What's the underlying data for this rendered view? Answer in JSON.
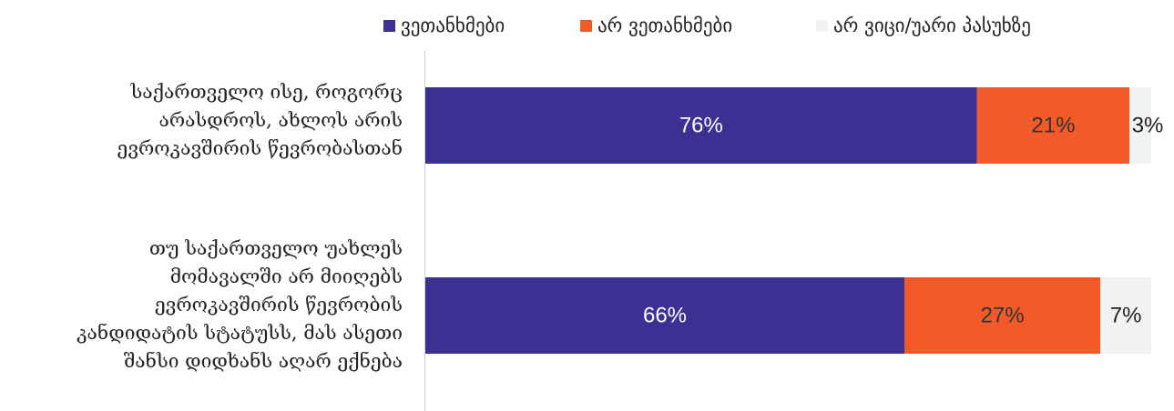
{
  "chart_data": {
    "type": "bar",
    "orientation": "horizontal",
    "stacked": true,
    "categories": [
      "საქართველო ისე, როგორც არასდროს, ახლოს არის ევროკავშირის წევრობასთან",
      "თუ საქართველო უახლეს მომავალში არ მიიღებს ევროკავშირის წევრობის კანდიდატის სტატუსს, მას ასეთი შანსი დიდხანს აღარ ექნება"
    ],
    "category_lines": [
      [
        "საქართველო ისე, როგორც",
        "არასდროს, ახლოს არის",
        "ევროკავშირის წევრობასთან"
      ],
      [
        "თუ საქართველო უახლეს",
        "მომავალში არ მიიღებს",
        "ევროკავშირის წევრობის",
        "კანდიდატის სტატუსს, მას ასეთი",
        "შანსი დიდხანს აღარ ექნება"
      ]
    ],
    "series": [
      {
        "name": "ვეთანხმები",
        "values": [
          76,
          66
        ],
        "labels": [
          "76%",
          "66%"
        ],
        "color": "#3b3192",
        "label_color": "#ffffff"
      },
      {
        "name": "არ ვეთანხმები",
        "values": [
          21,
          27
        ],
        "labels": [
          "21%",
          "27%"
        ],
        "color": "#f15a29",
        "label_color": "#333333"
      },
      {
        "name": "არ ვიცი/უარი პასუხზე",
        "values": [
          3,
          7
        ],
        "labels": [
          "3%",
          "7%"
        ],
        "color": "#f2f2f2",
        "label_color": "#222222"
      }
    ],
    "xlim": [
      0,
      100
    ],
    "legend_position": "top",
    "grid": false
  }
}
